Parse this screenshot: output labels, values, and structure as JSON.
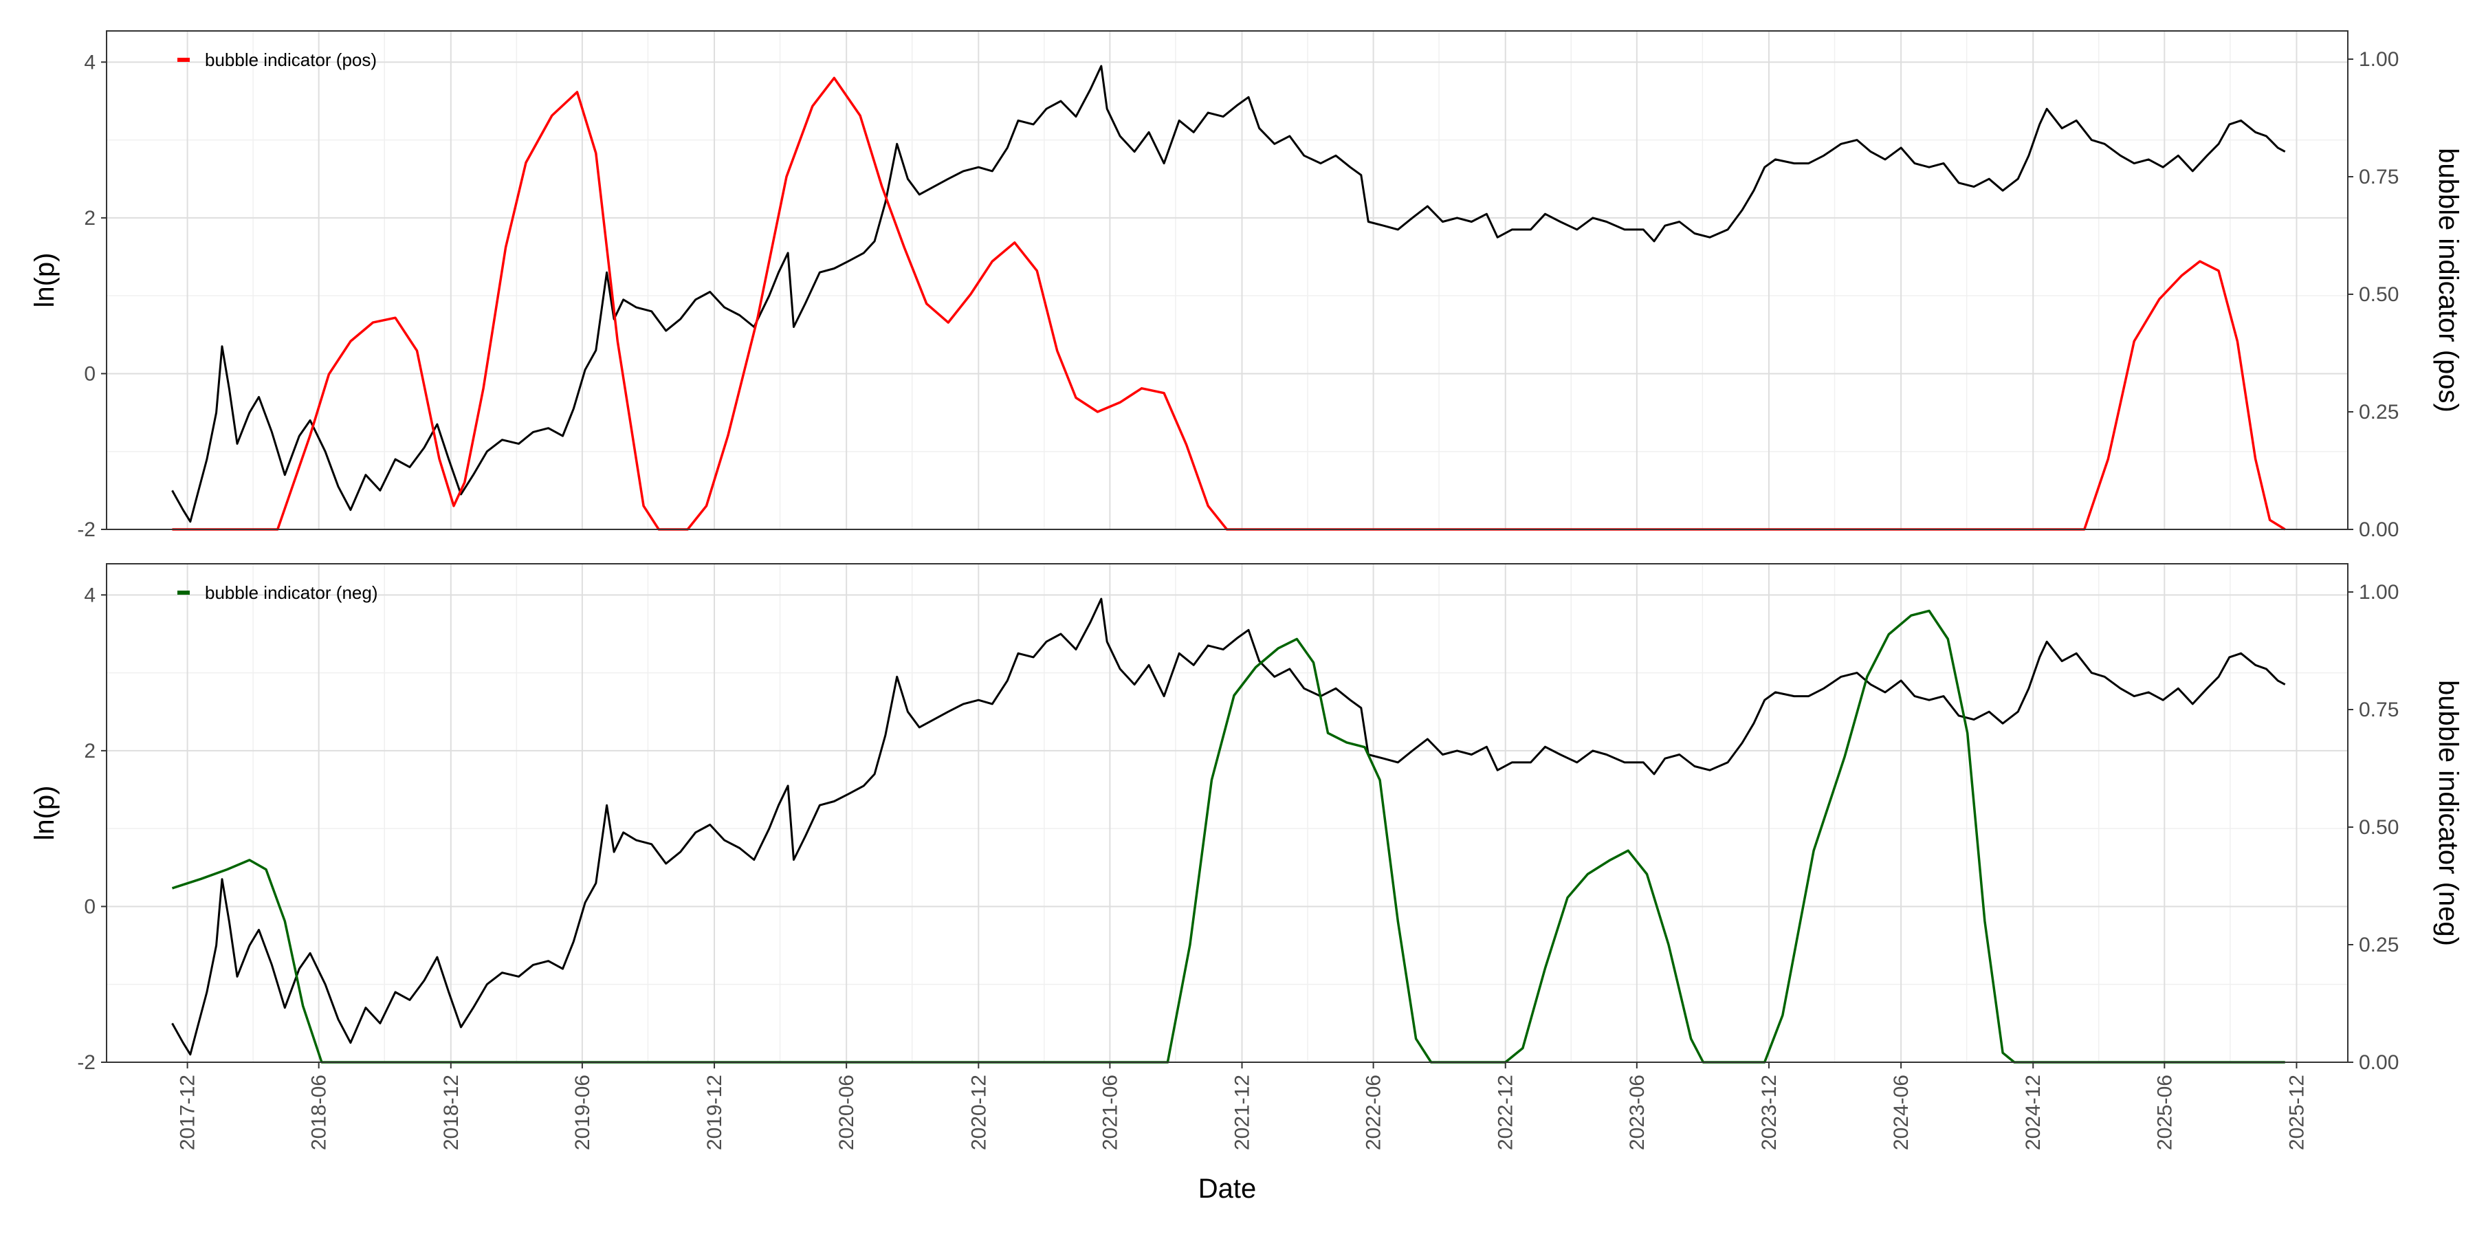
{
  "chart_data": {
    "type": "line",
    "xlabel": "Date",
    "x_ticks": [
      "2017-12",
      "2018-06",
      "2018-12",
      "2019-06",
      "2019-12",
      "2020-06",
      "2020-12",
      "2021-06",
      "2021-12",
      "2022-06",
      "2022-12",
      "2023-06",
      "2023-12",
      "2024-06",
      "2024-12",
      "2025-06",
      "2025-12"
    ],
    "x_range": [
      "2017-08-11",
      "2026-02-10"
    ],
    "ylabel_left": "ln(p)",
    "ylim_left": [
      -2,
      4.4
    ],
    "y_ticks_left": [
      "-2",
      "0",
      "2",
      "4"
    ],
    "ylim_right": [
      0,
      1.06
    ],
    "y_ticks_right": [
      "0.00",
      "0.25",
      "0.50",
      "0.75",
      "1.00"
    ],
    "grid": true,
    "legend_position": "top-left",
    "price_series": {
      "color": "#000000",
      "points": [
        [
          "2017-11-10",
          -1.5
        ],
        [
          "2017-11-25",
          -1.75
        ],
        [
          "2017-12-05",
          -1.9
        ],
        [
          "2017-12-15",
          -1.55
        ],
        [
          "2017-12-28",
          -1.1
        ],
        [
          "2018-01-10",
          -0.5
        ],
        [
          "2018-01-18",
          0.35
        ],
        [
          "2018-01-28",
          -0.2
        ],
        [
          "2018-02-08",
          -0.9
        ],
        [
          "2018-02-25",
          -0.5
        ],
        [
          "2018-03-10",
          -0.3
        ],
        [
          "2018-03-28",
          -0.75
        ],
        [
          "2018-04-15",
          -1.3
        ],
        [
          "2018-05-05",
          -0.8
        ],
        [
          "2018-05-20",
          -0.6
        ],
        [
          "2018-06-10",
          -1.0
        ],
        [
          "2018-06-28",
          -1.45
        ],
        [
          "2018-07-15",
          -1.75
        ],
        [
          "2018-08-05",
          -1.3
        ],
        [
          "2018-08-25",
          -1.5
        ],
        [
          "2018-09-15",
          -1.1
        ],
        [
          "2018-10-05",
          -1.2
        ],
        [
          "2018-10-25",
          -0.95
        ],
        [
          "2018-11-12",
          -0.65
        ],
        [
          "2018-11-28",
          -1.1
        ],
        [
          "2018-12-15",
          -1.55
        ],
        [
          "2019-01-01",
          -1.3
        ],
        [
          "2019-01-20",
          -1.0
        ],
        [
          "2019-02-10",
          -0.85
        ],
        [
          "2019-03-05",
          -0.9
        ],
        [
          "2019-03-25",
          -0.75
        ],
        [
          "2019-04-15",
          -0.7
        ],
        [
          "2019-05-05",
          -0.8
        ],
        [
          "2019-05-20",
          -0.45
        ],
        [
          "2019-06-05",
          0.05
        ],
        [
          "2019-06-20",
          0.3
        ],
        [
          "2019-07-05",
          1.3
        ],
        [
          "2019-07-15",
          0.7
        ],
        [
          "2019-07-28",
          0.95
        ],
        [
          "2019-08-15",
          0.85
        ],
        [
          "2019-09-05",
          0.8
        ],
        [
          "2019-09-25",
          0.55
        ],
        [
          "2019-10-15",
          0.7
        ],
        [
          "2019-11-05",
          0.95
        ],
        [
          "2019-11-25",
          1.05
        ],
        [
          "2019-12-15",
          0.85
        ],
        [
          "2020-01-05",
          0.75
        ],
        [
          "2020-01-25",
          0.6
        ],
        [
          "2020-02-15",
          1.0
        ],
        [
          "2020-02-28",
          1.3
        ],
        [
          "2020-03-12",
          1.55
        ],
        [
          "2020-03-20",
          0.6
        ],
        [
          "2020-04-05",
          0.9
        ],
        [
          "2020-04-25",
          1.3
        ],
        [
          "2020-05-15",
          1.35
        ],
        [
          "2020-06-05",
          1.45
        ],
        [
          "2020-06-25",
          1.55
        ],
        [
          "2020-07-10",
          1.7
        ],
        [
          "2020-07-25",
          2.2
        ],
        [
          "2020-08-10",
          2.95
        ],
        [
          "2020-08-25",
          2.5
        ],
        [
          "2020-09-10",
          2.3
        ],
        [
          "2020-09-30",
          2.4
        ],
        [
          "2020-10-20",
          2.5
        ],
        [
          "2020-11-10",
          2.6
        ],
        [
          "2020-12-01",
          2.65
        ],
        [
          "2020-12-20",
          2.6
        ],
        [
          "2021-01-10",
          2.9
        ],
        [
          "2021-01-25",
          3.25
        ],
        [
          "2021-02-15",
          3.2
        ],
        [
          "2021-03-05",
          3.4
        ],
        [
          "2021-03-25",
          3.5
        ],
        [
          "2021-04-15",
          3.3
        ],
        [
          "2021-05-05",
          3.65
        ],
        [
          "2021-05-20",
          3.95
        ],
        [
          "2021-05-28",
          3.4
        ],
        [
          "2021-06-15",
          3.05
        ],
        [
          "2021-07-05",
          2.85
        ],
        [
          "2021-07-25",
          3.1
        ],
        [
          "2021-08-15",
          2.7
        ],
        [
          "2021-09-05",
          3.25
        ],
        [
          "2021-09-25",
          3.1
        ],
        [
          "2021-10-15",
          3.35
        ],
        [
          "2021-11-05",
          3.3
        ],
        [
          "2021-11-25",
          3.45
        ],
        [
          "2021-12-10",
          3.55
        ],
        [
          "2021-12-25",
          3.15
        ],
        [
          "2022-01-15",
          2.95
        ],
        [
          "2022-02-05",
          3.05
        ],
        [
          "2022-02-25",
          2.8
        ],
        [
          "2022-03-20",
          2.7
        ],
        [
          "2022-04-10",
          2.8
        ],
        [
          "2022-04-30",
          2.65
        ],
        [
          "2022-05-15",
          2.55
        ],
        [
          "2022-05-25",
          1.95
        ],
        [
          "2022-06-15",
          1.9
        ],
        [
          "2022-07-05",
          1.85
        ],
        [
          "2022-07-25",
          2.0
        ],
        [
          "2022-08-15",
          2.15
        ],
        [
          "2022-09-05",
          1.95
        ],
        [
          "2022-09-25",
          2.0
        ],
        [
          "2022-10-15",
          1.95
        ],
        [
          "2022-11-05",
          2.05
        ],
        [
          "2022-11-20",
          1.75
        ],
        [
          "2022-12-10",
          1.85
        ],
        [
          "2023-01-05",
          1.85
        ],
        [
          "2023-01-25",
          2.05
        ],
        [
          "2023-02-15",
          1.95
        ],
        [
          "2023-03-10",
          1.85
        ],
        [
          "2023-04-01",
          2.0
        ],
        [
          "2023-04-20",
          1.95
        ],
        [
          "2023-05-15",
          1.85
        ],
        [
          "2023-06-10",
          1.85
        ],
        [
          "2023-06-25",
          1.7
        ],
        [
          "2023-07-10",
          1.9
        ],
        [
          "2023-07-30",
          1.95
        ],
        [
          "2023-08-20",
          1.8
        ],
        [
          "2023-09-10",
          1.75
        ],
        [
          "2023-10-05",
          1.85
        ],
        [
          "2023-10-25",
          2.1
        ],
        [
          "2023-11-10",
          2.35
        ],
        [
          "2023-11-25",
          2.65
        ],
        [
          "2023-12-10",
          2.75
        ],
        [
          "2024-01-05",
          2.7
        ],
        [
          "2024-01-25",
          2.7
        ],
        [
          "2024-02-15",
          2.8
        ],
        [
          "2024-03-10",
          2.95
        ],
        [
          "2024-04-01",
          3.0
        ],
        [
          "2024-04-20",
          2.85
        ],
        [
          "2024-05-10",
          2.75
        ],
        [
          "2024-06-01",
          2.9
        ],
        [
          "2024-06-20",
          2.7
        ],
        [
          "2024-07-10",
          2.65
        ],
        [
          "2024-07-30",
          2.7
        ],
        [
          "2024-08-20",
          2.45
        ],
        [
          "2024-09-10",
          2.4
        ],
        [
          "2024-10-01",
          2.5
        ],
        [
          "2024-10-20",
          2.35
        ],
        [
          "2024-11-10",
          2.5
        ],
        [
          "2024-11-25",
          2.8
        ],
        [
          "2024-12-10",
          3.2
        ],
        [
          "2024-12-20",
          3.4
        ],
        [
          "2025-01-10",
          3.15
        ],
        [
          "2025-01-30",
          3.25
        ],
        [
          "2025-02-20",
          3.0
        ],
        [
          "2025-03-10",
          2.95
        ],
        [
          "2025-04-01",
          2.8
        ],
        [
          "2025-04-20",
          2.7
        ],
        [
          "2025-05-10",
          2.75
        ],
        [
          "2025-05-30",
          2.65
        ],
        [
          "2025-06-20",
          2.8
        ],
        [
          "2025-07-10",
          2.6
        ],
        [
          "2025-07-30",
          2.8
        ],
        [
          "2025-08-15",
          2.95
        ],
        [
          "2025-08-30",
          3.2
        ],
        [
          "2025-09-15",
          3.25
        ],
        [
          "2025-10-05",
          3.1
        ],
        [
          "2025-10-20",
          3.05
        ],
        [
          "2025-11-05",
          2.9
        ],
        [
          "2025-11-15",
          2.85
        ]
      ]
    },
    "panels": [
      {
        "legend_label": "bubble indicator (pos)",
        "ylabel_right": "bubble indicator (pos)",
        "color": "#ff0000",
        "points": [
          [
            "2017-11-10",
            0.0
          ],
          [
            "2018-02-01",
            0.0
          ],
          [
            "2018-04-05",
            0.0
          ],
          [
            "2018-05-20",
            0.2
          ],
          [
            "2018-06-15",
            0.33
          ],
          [
            "2018-07-15",
            0.4
          ],
          [
            "2018-08-15",
            0.44
          ],
          [
            "2018-09-15",
            0.45
          ],
          [
            "2018-10-15",
            0.38
          ],
          [
            "2018-11-15",
            0.15
          ],
          [
            "2018-12-05",
            0.05
          ],
          [
            "2018-12-20",
            0.1
          ],
          [
            "2019-01-15",
            0.3
          ],
          [
            "2019-02-15",
            0.6
          ],
          [
            "2019-03-15",
            0.78
          ],
          [
            "2019-04-20",
            0.88
          ],
          [
            "2019-05-25",
            0.93
          ],
          [
            "2019-06-20",
            0.8
          ],
          [
            "2019-07-20",
            0.4
          ],
          [
            "2019-08-25",
            0.05
          ],
          [
            "2019-09-15",
            0.0
          ],
          [
            "2019-10-25",
            0.0
          ],
          [
            "2019-11-20",
            0.05
          ],
          [
            "2019-12-20",
            0.2
          ],
          [
            "2020-01-30",
            0.45
          ],
          [
            "2020-03-10",
            0.75
          ],
          [
            "2020-04-15",
            0.9
          ],
          [
            "2020-05-15",
            0.96
          ],
          [
            "2020-06-20",
            0.88
          ],
          [
            "2020-07-20",
            0.73
          ],
          [
            "2020-08-20",
            0.6
          ],
          [
            "2020-09-20",
            0.48
          ],
          [
            "2020-10-20",
            0.44
          ],
          [
            "2020-11-20",
            0.5
          ],
          [
            "2020-12-20",
            0.57
          ],
          [
            "2021-01-20",
            0.61
          ],
          [
            "2021-02-20",
            0.55
          ],
          [
            "2021-03-20",
            0.38
          ],
          [
            "2021-04-15",
            0.28
          ],
          [
            "2021-05-15",
            0.25
          ],
          [
            "2021-06-15",
            0.27
          ],
          [
            "2021-07-15",
            0.3
          ],
          [
            "2021-08-15",
            0.29
          ],
          [
            "2021-09-15",
            0.18
          ],
          [
            "2021-10-15",
            0.05
          ],
          [
            "2021-11-10",
            0.0
          ],
          [
            "2022-06-01",
            0.0
          ],
          [
            "2023-06-01",
            0.0
          ],
          [
            "2024-06-01",
            0.0
          ],
          [
            "2025-02-10",
            0.0
          ],
          [
            "2025-03-15",
            0.15
          ],
          [
            "2025-04-20",
            0.4
          ],
          [
            "2025-05-25",
            0.49
          ],
          [
            "2025-06-25",
            0.54
          ],
          [
            "2025-07-20",
            0.57
          ],
          [
            "2025-08-15",
            0.55
          ],
          [
            "2025-09-10",
            0.4
          ],
          [
            "2025-10-05",
            0.15
          ],
          [
            "2025-10-25",
            0.02
          ],
          [
            "2025-11-15",
            0.0
          ]
        ]
      },
      {
        "legend_label": "bubble indicator (neg)",
        "ylabel_right": "bubble indicator (neg)",
        "color": "#006400",
        "points": [
          [
            "2017-11-10",
            0.37
          ],
          [
            "2017-12-20",
            0.39
          ],
          [
            "2018-01-25",
            0.41
          ],
          [
            "2018-02-25",
            0.43
          ],
          [
            "2018-03-20",
            0.41
          ],
          [
            "2018-04-15",
            0.3
          ],
          [
            "2018-05-10",
            0.12
          ],
          [
            "2018-06-05",
            0.0
          ],
          [
            "2018-07-15",
            0.0
          ],
          [
            "2019-06-01",
            0.0
          ],
          [
            "2020-06-01",
            0.0
          ],
          [
            "2021-06-01",
            0.0
          ],
          [
            "2021-08-20",
            0.0
          ],
          [
            "2021-09-20",
            0.25
          ],
          [
            "2021-10-20",
            0.6
          ],
          [
            "2021-11-20",
            0.78
          ],
          [
            "2021-12-20",
            0.84
          ],
          [
            "2022-01-20",
            0.88
          ],
          [
            "2022-02-15",
            0.9
          ],
          [
            "2022-03-10",
            0.85
          ],
          [
            "2022-03-30",
            0.7
          ],
          [
            "2022-04-25",
            0.68
          ],
          [
            "2022-05-20",
            0.67
          ],
          [
            "2022-06-10",
            0.6
          ],
          [
            "2022-07-05",
            0.3
          ],
          [
            "2022-07-30",
            0.05
          ],
          [
            "2022-08-20",
            0.0
          ],
          [
            "2022-12-01",
            0.0
          ],
          [
            "2022-12-25",
            0.03
          ],
          [
            "2023-01-25",
            0.2
          ],
          [
            "2023-02-25",
            0.35
          ],
          [
            "2023-03-25",
            0.4
          ],
          [
            "2023-04-25",
            0.43
          ],
          [
            "2023-05-20",
            0.45
          ],
          [
            "2023-06-15",
            0.4
          ],
          [
            "2023-07-15",
            0.25
          ],
          [
            "2023-08-15",
            0.05
          ],
          [
            "2023-09-01",
            0.0
          ],
          [
            "2023-11-25",
            0.0
          ],
          [
            "2023-12-20",
            0.1
          ],
          [
            "2024-02-01",
            0.45
          ],
          [
            "2024-03-15",
            0.65
          ],
          [
            "2024-04-15",
            0.82
          ],
          [
            "2024-05-15",
            0.91
          ],
          [
            "2024-06-15",
            0.95
          ],
          [
            "2024-07-10",
            0.96
          ],
          [
            "2024-08-05",
            0.9
          ],
          [
            "2024-09-01",
            0.7
          ],
          [
            "2024-09-25",
            0.3
          ],
          [
            "2024-10-20",
            0.02
          ],
          [
            "2024-11-05",
            0.0
          ],
          [
            "2025-06-01",
            0.0
          ],
          [
            "2025-11-15",
            0.0
          ]
        ]
      }
    ]
  }
}
